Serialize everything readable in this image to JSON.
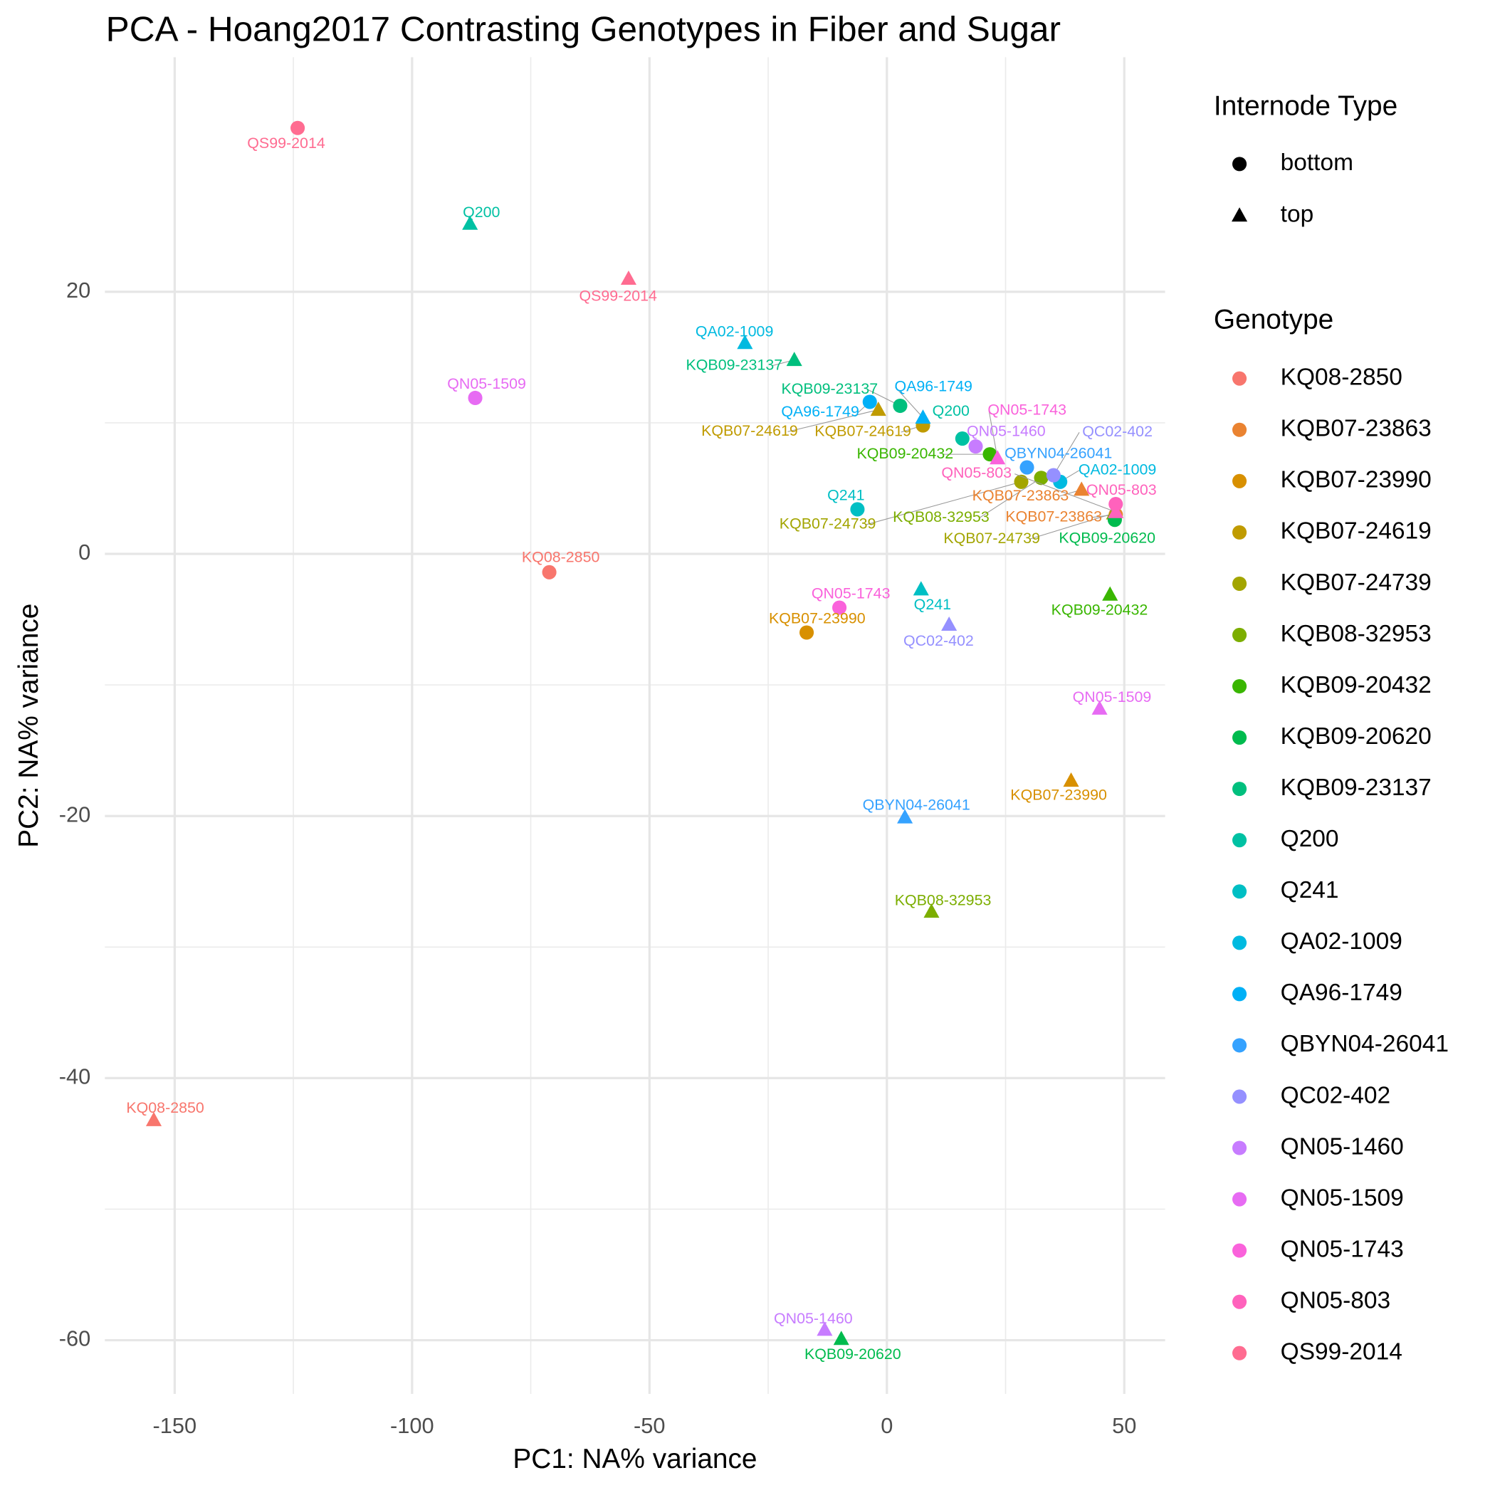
{
  "chart_data": {
    "type": "scatter",
    "title": "PCA - Hoang2017 Contrasting Genotypes in Fiber and Sugar",
    "x_label": "PC1: NA% variance",
    "y_label": "PC2: NA% variance",
    "xlim": [
      -164.7,
      58.6
    ],
    "ylim": [
      -64.1,
      37.9
    ],
    "xticks": [
      -150,
      -100,
      -50,
      0,
      50
    ],
    "yticks": [
      -60,
      -40,
      -20,
      0,
      20
    ],
    "grid": true,
    "shape_legend": {
      "title": "Internode Type",
      "shapes": [
        {
          "name": "bottom",
          "marker": "circle"
        },
        {
          "name": "top",
          "marker": "triangle"
        }
      ]
    },
    "color_legend_title": "Genotype",
    "series": [
      {
        "name": "KQ08-2850",
        "color": "#F8766D",
        "x": [
          -71.1,
          -154.4
        ],
        "values": [
          -1.4,
          -43.2
        ]
      },
      {
        "name": "KQB07-23863",
        "color": "#EA8331",
        "x": [
          48.2,
          41.0
        ],
        "values": [
          3.0,
          4.9
        ]
      },
      {
        "name": "KQB07-23990",
        "color": "#D89000",
        "x": [
          -16.9,
          38.8
        ],
        "values": [
          -6.0,
          -17.3
        ]
      },
      {
        "name": "KQB07-24619",
        "color": "#C09B00",
        "x": [
          7.6,
          -1.8
        ],
        "values": [
          9.8,
          11.0
        ]
      },
      {
        "name": "KQB07-24739",
        "color": "#A3A500",
        "x": [
          28.3,
          47.8
        ],
        "values": [
          5.5,
          3.1
        ]
      },
      {
        "name": "KQB08-32953",
        "color": "#7CAE00",
        "x": [
          32.5,
          9.4
        ],
        "values": [
          5.8,
          -27.3
        ]
      },
      {
        "name": "KQB09-20432",
        "color": "#39B600",
        "x": [
          21.7,
          47.0
        ],
        "values": [
          7.6,
          -3.1
        ]
      },
      {
        "name": "KQB09-20620",
        "color": "#00BB4E",
        "x": [
          48.0,
          -9.6
        ],
        "values": [
          2.6,
          -59.9
        ]
      },
      {
        "name": "KQB09-23137",
        "color": "#00BF7D",
        "x": [
          2.8,
          -19.5
        ],
        "values": [
          11.3,
          14.8
        ]
      },
      {
        "name": "Q200",
        "color": "#00C1A3",
        "x": [
          15.9,
          -87.8
        ],
        "values": [
          8.8,
          25.2
        ]
      },
      {
        "name": "Q241",
        "color": "#00BFC4",
        "x": [
          -6.2,
          7.2
        ],
        "values": [
          3.4,
          -2.7
        ]
      },
      {
        "name": "QA02-1009",
        "color": "#00BAE0",
        "x": [
          36.5,
          -29.9
        ],
        "values": [
          5.5,
          16.1
        ]
      },
      {
        "name": "QA96-1749",
        "color": "#00B0F6",
        "x": [
          -3.6,
          7.6
        ],
        "values": [
          11.6,
          10.4
        ]
      },
      {
        "name": "QBYN04-26041",
        "color": "#35A2FF",
        "x": [
          29.5,
          3.8
        ],
        "values": [
          6.6,
          -20.1
        ]
      },
      {
        "name": "QC02-402",
        "color": "#9590FF",
        "x": [
          35.1,
          13.1
        ],
        "values": [
          6.0,
          -5.4
        ]
      },
      {
        "name": "QN05-1460",
        "color": "#C77CFF",
        "x": [
          18.7,
          -13.1
        ],
        "values": [
          8.2,
          -59.2
        ]
      },
      {
        "name": "QN05-1509",
        "color": "#E76BF3",
        "x": [
          -86.7,
          44.8
        ],
        "values": [
          11.9,
          -11.8
        ]
      },
      {
        "name": "QN05-1743",
        "color": "#FA62DB",
        "x": [
          -10.0,
          23.3
        ],
        "values": [
          -4.1,
          7.3
        ]
      },
      {
        "name": "QN05-803",
        "color": "#FF62BC",
        "x": [
          48.2,
          48.2
        ],
        "values": [
          3.8,
          3.2
        ]
      },
      {
        "name": "QS99-2014",
        "color": "#FF6C91",
        "x": [
          -124.1,
          -54.4
        ],
        "values": [
          32.5,
          21.0
        ]
      }
    ]
  }
}
